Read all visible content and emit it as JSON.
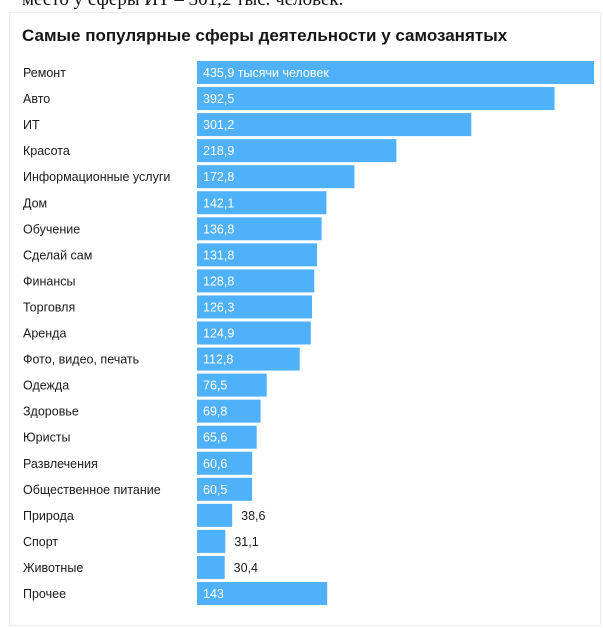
{
  "top_text": "место у сферы ИТ – 301,2 тыс. человек.",
  "colors": {
    "bar": "#4fb1f9",
    "bar_label_inside": "#ffffff",
    "bar_label_outside": "#1a1a1a",
    "category_text": "#1a1a1a"
  },
  "chart_data": {
    "type": "bar",
    "orientation": "horizontal",
    "title": "Самые популярные сферы деятельности у самозанятых",
    "unit_note": "тысячи человек",
    "categories": [
      "Ремонт",
      "Авто",
      "ИТ",
      "Красота",
      "Информационные услуги",
      "Дом",
      "Обучение",
      "Сделай сам",
      "Финансы",
      "Торговля",
      "Аренда",
      "Фото, видео, печать",
      "Одежда",
      "Здоровье",
      "Юристы",
      "Развлечения",
      "Общественное питание",
      "Природа",
      "Спорт",
      "Животные",
      "Прочее"
    ],
    "values": [
      435.9,
      392.5,
      301.2,
      218.9,
      172.8,
      142.1,
      136.8,
      131.8,
      128.8,
      126.3,
      124.9,
      112.8,
      76.5,
      69.8,
      65.6,
      60.6,
      60.5,
      38.6,
      31.1,
      30.4,
      143
    ],
    "value_labels": [
      "435,9 тысячи человек",
      "392,5",
      "301,2",
      "218,9",
      "172,8",
      "142,1",
      "136,8",
      "131,8",
      "128,8",
      "126,3",
      "124,9",
      "112,8",
      "76,5",
      "69,8",
      "65,6",
      "60,6",
      "60,5",
      "38,6",
      "31,1",
      "30,4",
      "143"
    ],
    "label_outside": [
      false,
      false,
      false,
      false,
      false,
      false,
      false,
      false,
      false,
      false,
      false,
      false,
      false,
      false,
      false,
      false,
      false,
      true,
      true,
      true,
      false
    ],
    "xlim": [
      0,
      435.9
    ],
    "grid": false,
    "legend": "none"
  }
}
